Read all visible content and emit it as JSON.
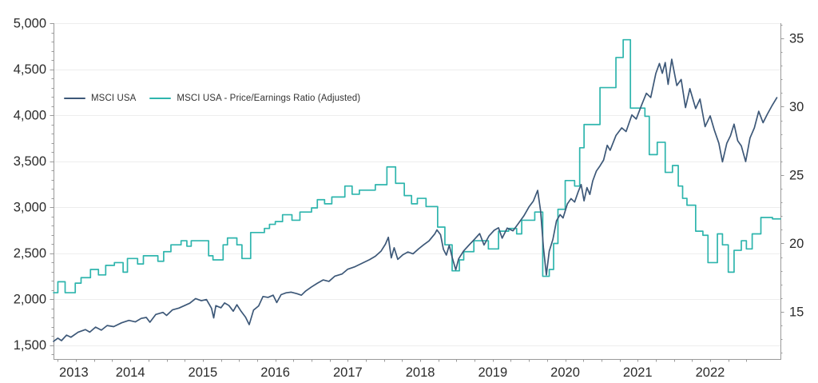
{
  "chart_data": {
    "type": "line",
    "title": "",
    "grid": "horizontal-only",
    "legend_position": "top-left-inside",
    "colors": {
      "msci_usa": "#3d5878",
      "pe_ratio": "#2eb5ad",
      "axis_line": "#9a9a9a",
      "grid_line": "#ededed",
      "tick_text": "#2b2b2b"
    },
    "legend": [
      {
        "label": "MSCI USA",
        "color": "#3d5878",
        "axis": "left"
      },
      {
        "label": "MSCI USA - Price/Earnings Ratio (Adjusted)",
        "color": "#2eb5ad",
        "axis": "right"
      }
    ],
    "x_axis": {
      "min": 2013.44,
      "max": 2023.47,
      "tick_labels": [
        "2013",
        "2014",
        "2015",
        "2016",
        "2017",
        "2018",
        "2019",
        "2020",
        "2021",
        "2022"
      ],
      "tick_years": [
        2013,
        2014,
        2015,
        2016,
        2017,
        2018,
        2019,
        2020,
        2021,
        2022
      ],
      "minor_tick_interval_years": 0.25,
      "minor_tick_range": [
        2013.5,
        2023.0
      ]
    },
    "left_axis": {
      "title": "",
      "min": 1348,
      "max": 5000,
      "tick_values": [
        1500,
        2000,
        2500,
        3000,
        3500,
        4000,
        4500,
        5000
      ],
      "tick_labels": [
        "1,500",
        "2,000",
        "2,500",
        "3,000",
        "3,500",
        "4,000",
        "4,500",
        "5,000"
      ],
      "minor_tick_step": 100
    },
    "right_axis": {
      "title": "",
      "min": 11.55,
      "max": 36.11,
      "tick_values": [
        15,
        20,
        25,
        30,
        35
      ],
      "tick_labels": [
        "15",
        "20",
        "25",
        "30",
        "35"
      ],
      "minor_tick_step": 1
    },
    "series": [
      {
        "name": "MSCI USA",
        "axis": "left",
        "interpolation": "linear",
        "points": [
          [
            2013.44,
            1540
          ],
          [
            2013.5,
            1575
          ],
          [
            2013.55,
            1548
          ],
          [
            2013.62,
            1608
          ],
          [
            2013.68,
            1585
          ],
          [
            2013.78,
            1640
          ],
          [
            2013.88,
            1668
          ],
          [
            2013.94,
            1640
          ],
          [
            2014.02,
            1695
          ],
          [
            2014.1,
            1662
          ],
          [
            2014.18,
            1712
          ],
          [
            2014.27,
            1700
          ],
          [
            2014.38,
            1742
          ],
          [
            2014.48,
            1768
          ],
          [
            2014.57,
            1752
          ],
          [
            2014.65,
            1790
          ],
          [
            2014.72,
            1800
          ],
          [
            2014.77,
            1748
          ],
          [
            2014.85,
            1832
          ],
          [
            2014.95,
            1855
          ],
          [
            2015.0,
            1822
          ],
          [
            2015.08,
            1882
          ],
          [
            2015.17,
            1902
          ],
          [
            2015.25,
            1930
          ],
          [
            2015.32,
            1955
          ],
          [
            2015.4,
            2005
          ],
          [
            2015.48,
            1982
          ],
          [
            2015.55,
            1995
          ],
          [
            2015.62,
            1900
          ],
          [
            2015.65,
            1795
          ],
          [
            2015.68,
            1928
          ],
          [
            2015.75,
            1905
          ],
          [
            2015.8,
            1958
          ],
          [
            2015.86,
            1930
          ],
          [
            2015.92,
            1868
          ],
          [
            2015.97,
            1938
          ],
          [
            2016.03,
            1865
          ],
          [
            2016.09,
            1802
          ],
          [
            2016.14,
            1722
          ],
          [
            2016.2,
            1880
          ],
          [
            2016.27,
            1925
          ],
          [
            2016.33,
            2028
          ],
          [
            2016.4,
            2018
          ],
          [
            2016.47,
            2042
          ],
          [
            2016.52,
            1962
          ],
          [
            2016.58,
            2048
          ],
          [
            2016.65,
            2068
          ],
          [
            2016.72,
            2075
          ],
          [
            2016.8,
            2058
          ],
          [
            2016.86,
            2042
          ],
          [
            2016.92,
            2088
          ],
          [
            2017.0,
            2132
          ],
          [
            2017.08,
            2172
          ],
          [
            2017.16,
            2208
          ],
          [
            2017.24,
            2192
          ],
          [
            2017.32,
            2248
          ],
          [
            2017.42,
            2272
          ],
          [
            2017.5,
            2325
          ],
          [
            2017.6,
            2352
          ],
          [
            2017.7,
            2390
          ],
          [
            2017.8,
            2428
          ],
          [
            2017.88,
            2465
          ],
          [
            2017.96,
            2522
          ],
          [
            2018.02,
            2598
          ],
          [
            2018.06,
            2672
          ],
          [
            2018.1,
            2448
          ],
          [
            2018.14,
            2558
          ],
          [
            2018.19,
            2432
          ],
          [
            2018.26,
            2482
          ],
          [
            2018.33,
            2512
          ],
          [
            2018.4,
            2492
          ],
          [
            2018.48,
            2548
          ],
          [
            2018.55,
            2592
          ],
          [
            2018.62,
            2632
          ],
          [
            2018.7,
            2708
          ],
          [
            2018.73,
            2752
          ],
          [
            2018.78,
            2700
          ],
          [
            2018.82,
            2540
          ],
          [
            2018.86,
            2478
          ],
          [
            2018.9,
            2585
          ],
          [
            2018.94,
            2455
          ],
          [
            2018.99,
            2318
          ],
          [
            2019.03,
            2438
          ],
          [
            2019.1,
            2525
          ],
          [
            2019.17,
            2585
          ],
          [
            2019.25,
            2652
          ],
          [
            2019.32,
            2712
          ],
          [
            2019.38,
            2588
          ],
          [
            2019.45,
            2688
          ],
          [
            2019.52,
            2748
          ],
          [
            2019.58,
            2775
          ],
          [
            2019.63,
            2662
          ],
          [
            2019.7,
            2772
          ],
          [
            2019.78,
            2742
          ],
          [
            2019.85,
            2818
          ],
          [
            2019.93,
            2905
          ],
          [
            2020.0,
            3002
          ],
          [
            2020.06,
            3065
          ],
          [
            2020.12,
            3182
          ],
          [
            2020.16,
            2962
          ],
          [
            2020.2,
            2558
          ],
          [
            2020.24,
            2262
          ],
          [
            2020.28,
            2522
          ],
          [
            2020.33,
            2648
          ],
          [
            2020.38,
            2852
          ],
          [
            2020.43,
            2918
          ],
          [
            2020.47,
            2882
          ],
          [
            2020.53,
            3035
          ],
          [
            2020.58,
            3092
          ],
          [
            2020.63,
            3055
          ],
          [
            2020.68,
            3168
          ],
          [
            2020.72,
            3245
          ],
          [
            2020.76,
            3068
          ],
          [
            2020.8,
            3212
          ],
          [
            2020.84,
            3138
          ],
          [
            2020.88,
            3285
          ],
          [
            2020.93,
            3392
          ],
          [
            2020.98,
            3448
          ],
          [
            2021.03,
            3512
          ],
          [
            2021.08,
            3672
          ],
          [
            2021.12,
            3618
          ],
          [
            2021.2,
            3778
          ],
          [
            2021.28,
            3862
          ],
          [
            2021.34,
            3822
          ],
          [
            2021.42,
            4002
          ],
          [
            2021.48,
            3958
          ],
          [
            2021.55,
            4102
          ],
          [
            2021.62,
            4238
          ],
          [
            2021.68,
            4192
          ],
          [
            2021.75,
            4452
          ],
          [
            2021.8,
            4562
          ],
          [
            2021.84,
            4455
          ],
          [
            2021.88,
            4572
          ],
          [
            2021.92,
            4335
          ],
          [
            2021.97,
            4608
          ],
          [
            2022.04,
            4322
          ],
          [
            2022.1,
            4388
          ],
          [
            2022.16,
            4082
          ],
          [
            2022.22,
            4288
          ],
          [
            2022.3,
            4072
          ],
          [
            2022.36,
            4175
          ],
          [
            2022.43,
            3875
          ],
          [
            2022.5,
            3992
          ],
          [
            2022.56,
            3832
          ],
          [
            2022.62,
            3695
          ],
          [
            2022.67,
            3492
          ],
          [
            2022.73,
            3695
          ],
          [
            2022.78,
            3775
          ],
          [
            2022.83,
            3902
          ],
          [
            2022.88,
            3722
          ],
          [
            2022.93,
            3665
          ],
          [
            2022.99,
            3495
          ],
          [
            2023.05,
            3752
          ],
          [
            2023.11,
            3862
          ],
          [
            2023.17,
            4042
          ],
          [
            2023.23,
            3918
          ],
          [
            2023.29,
            4012
          ],
          [
            2023.35,
            4098
          ],
          [
            2023.42,
            4190
          ]
        ]
      },
      {
        "name": "MSCI USA - Price/Earnings Ratio (Adjusted)",
        "axis": "right",
        "interpolation": "step-after",
        "points": [
          [
            2013.44,
            16.4
          ],
          [
            2013.5,
            17.2
          ],
          [
            2013.6,
            16.4
          ],
          [
            2013.74,
            17.1
          ],
          [
            2013.82,
            17.5
          ],
          [
            2013.95,
            18.1
          ],
          [
            2014.06,
            17.7
          ],
          [
            2014.16,
            18.4
          ],
          [
            2014.28,
            18.6
          ],
          [
            2014.4,
            17.9
          ],
          [
            2014.46,
            18.9
          ],
          [
            2014.6,
            18.5
          ],
          [
            2014.68,
            19.1
          ],
          [
            2014.88,
            18.7
          ],
          [
            2014.96,
            19.4
          ],
          [
            2015.06,
            19.9
          ],
          [
            2015.2,
            20.2
          ],
          [
            2015.28,
            19.8
          ],
          [
            2015.34,
            20.2
          ],
          [
            2015.58,
            19.1
          ],
          [
            2015.64,
            18.8
          ],
          [
            2015.78,
            19.9
          ],
          [
            2015.84,
            20.4
          ],
          [
            2015.97,
            19.9
          ],
          [
            2016.04,
            18.9
          ],
          [
            2016.16,
            20.8
          ],
          [
            2016.35,
            21.1
          ],
          [
            2016.42,
            21.4
          ],
          [
            2016.5,
            21.6
          ],
          [
            2016.6,
            22.1
          ],
          [
            2016.73,
            21.7
          ],
          [
            2016.84,
            22.3
          ],
          [
            2017.0,
            22.6
          ],
          [
            2017.08,
            23.2
          ],
          [
            2017.18,
            22.9
          ],
          [
            2017.28,
            23.4
          ],
          [
            2017.46,
            24.2
          ],
          [
            2017.56,
            23.6
          ],
          [
            2017.66,
            23.9
          ],
          [
            2017.88,
            24.3
          ],
          [
            2018.04,
            25.6
          ],
          [
            2018.16,
            24.4
          ],
          [
            2018.28,
            23.5
          ],
          [
            2018.38,
            22.9
          ],
          [
            2018.46,
            23.3
          ],
          [
            2018.58,
            22.7
          ],
          [
            2018.74,
            21.2
          ],
          [
            2018.84,
            19.9
          ],
          [
            2018.94,
            18.0
          ],
          [
            2019.04,
            18.8
          ],
          [
            2019.1,
            19.4
          ],
          [
            2019.24,
            20.2
          ],
          [
            2019.44,
            19.6
          ],
          [
            2019.58,
            20.9
          ],
          [
            2019.72,
            21.1
          ],
          [
            2019.83,
            20.7
          ],
          [
            2019.9,
            21.7
          ],
          [
            2020.08,
            22.3
          ],
          [
            2020.19,
            17.6
          ],
          [
            2020.28,
            18.1
          ],
          [
            2020.34,
            20.0
          ],
          [
            2020.4,
            22.5
          ],
          [
            2020.5,
            24.6
          ],
          [
            2020.63,
            24.2
          ],
          [
            2020.7,
            27.0
          ],
          [
            2020.76,
            28.7
          ],
          [
            2020.98,
            31.4
          ],
          [
            2021.2,
            33.6
          ],
          [
            2021.3,
            34.9
          ],
          [
            2021.4,
            29.9
          ],
          [
            2021.6,
            29.3
          ],
          [
            2021.66,
            26.5
          ],
          [
            2021.77,
            27.4
          ],
          [
            2021.88,
            25.2
          ],
          [
            2021.98,
            25.7
          ],
          [
            2022.06,
            24.2
          ],
          [
            2022.12,
            23.3
          ],
          [
            2022.18,
            22.8
          ],
          [
            2022.3,
            20.9
          ],
          [
            2022.4,
            20.6
          ],
          [
            2022.47,
            18.6
          ],
          [
            2022.6,
            20.7
          ],
          [
            2022.67,
            19.9
          ],
          [
            2022.75,
            17.9
          ],
          [
            2022.83,
            19.5
          ],
          [
            2022.93,
            20.2
          ],
          [
            2023.0,
            19.6
          ],
          [
            2023.08,
            20.7
          ],
          [
            2023.2,
            21.9
          ],
          [
            2023.36,
            21.8
          ]
        ]
      }
    ]
  }
}
